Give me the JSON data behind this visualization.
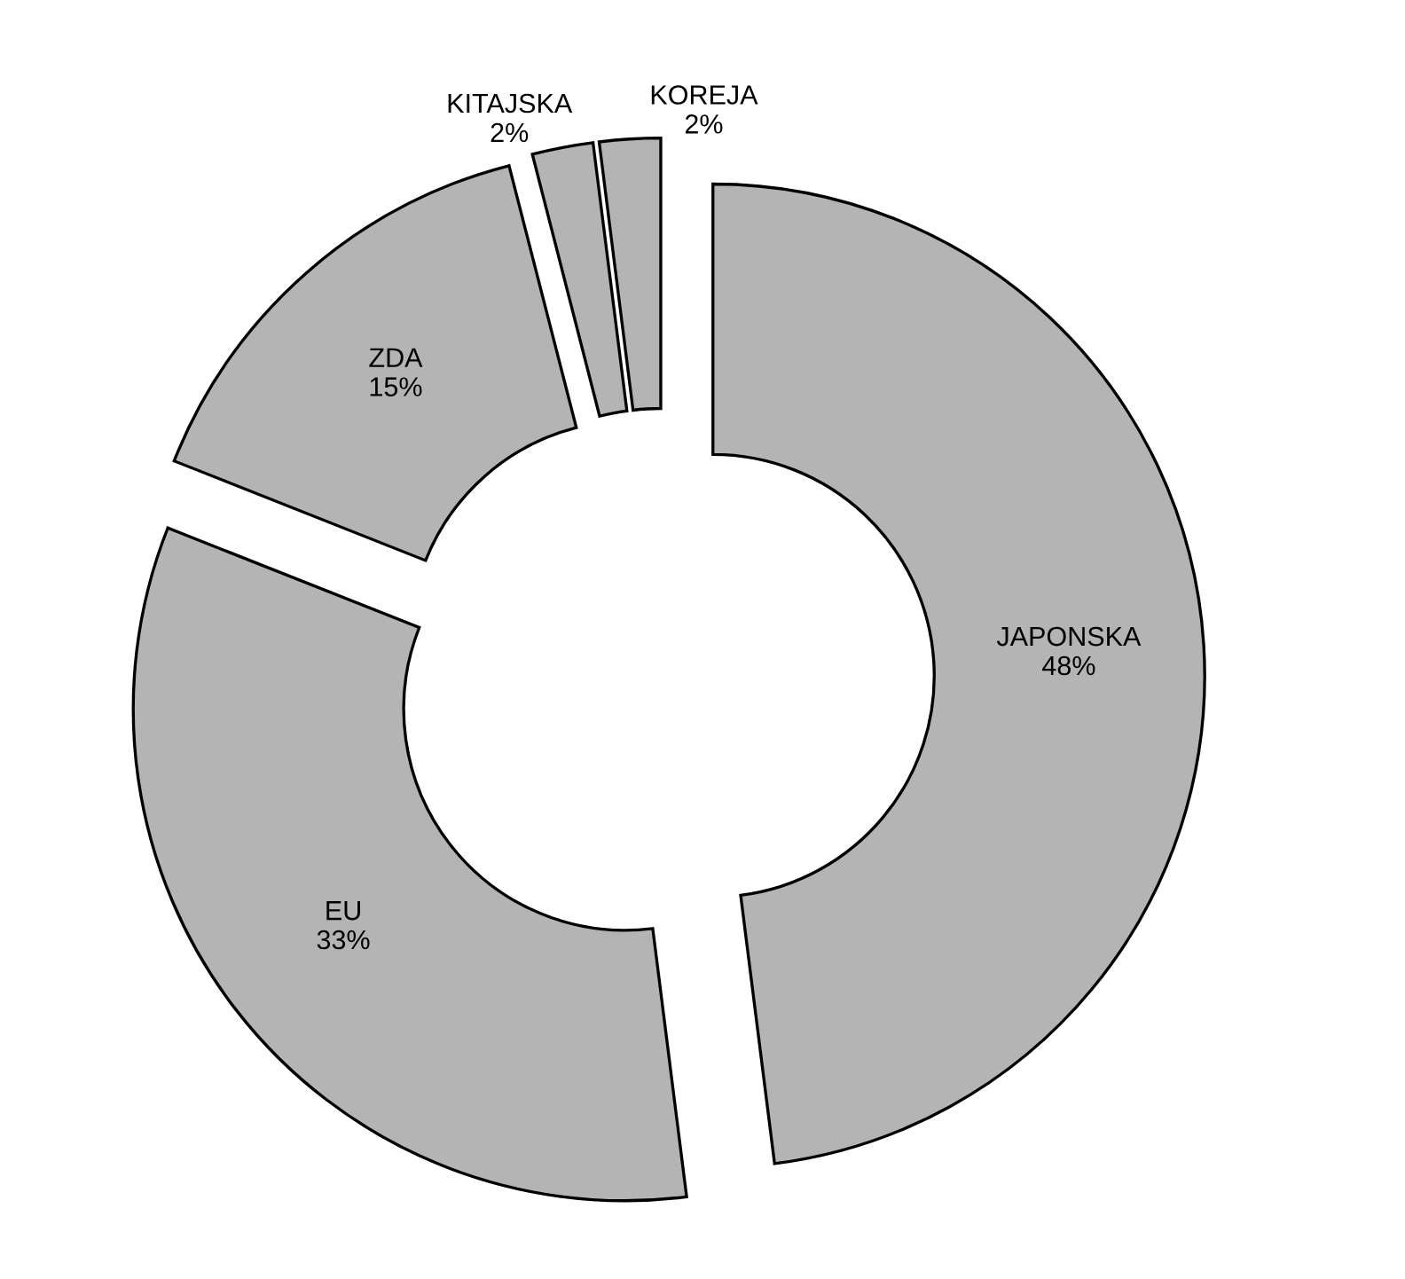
{
  "chart_data": {
    "type": "donut",
    "categories": [
      "JAPONSKA",
      "EU",
      "ZDA",
      "KITAJSKA",
      "KOREJA"
    ],
    "values": [
      48,
      33,
      15,
      2,
      2
    ],
    "value_labels": [
      "48%",
      "33%",
      "15%",
      "2%",
      "2%"
    ],
    "colors": [
      "#b4b4b4",
      "#b4b4b4",
      "#b4b4b4",
      "#b4b4b4",
      "#b4b4b4"
    ],
    "legend": false
  }
}
